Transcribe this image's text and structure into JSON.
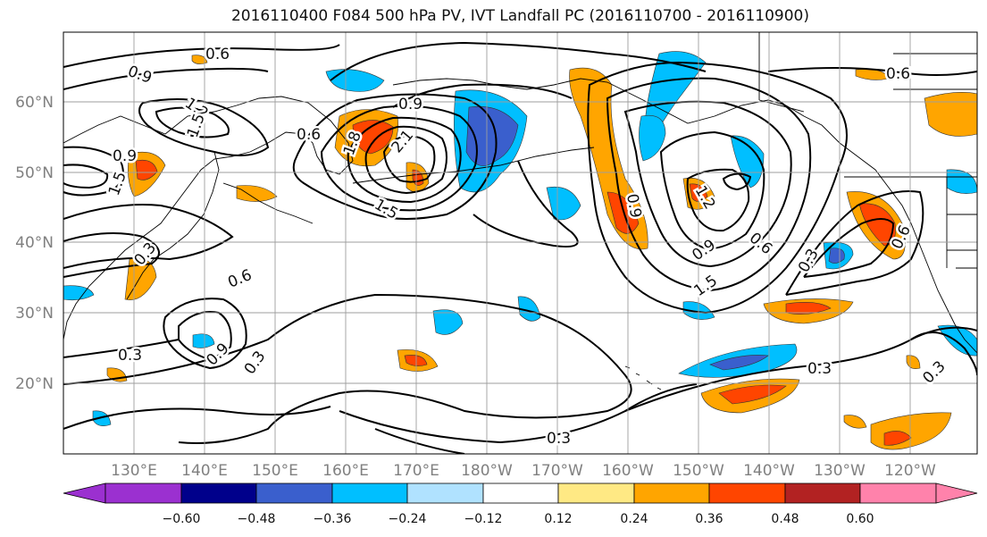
{
  "title": "2016110400 F084 500 hPa PV, IVT Landfall PC (2016110700 - 2016110900)",
  "map": {
    "lon_ticks": [
      "130°E",
      "140°E",
      "150°E",
      "160°E",
      "170°E",
      "180°W",
      "170°W",
      "160°W",
      "150°W",
      "140°W",
      "130°W",
      "120°W"
    ],
    "lat_ticks": [
      "60°N",
      "50°N",
      "40°N",
      "30°N",
      "20°N"
    ],
    "contour_labels": [
      {
        "text": "0.6"
      },
      {
        "text": "0.9"
      },
      {
        "text": "1.2"
      },
      {
        "text": "1.5"
      },
      {
        "text": "0.6"
      },
      {
        "text": "0.9"
      },
      {
        "text": "2.1"
      },
      {
        "text": "1.8"
      },
      {
        "text": "1.5"
      },
      {
        "text": "0.9"
      },
      {
        "text": "0.6"
      },
      {
        "text": "1.5"
      },
      {
        "text": "0.9"
      },
      {
        "text": "1.5"
      },
      {
        "text": "0.9"
      },
      {
        "text": "1.2"
      },
      {
        "text": "0.3"
      },
      {
        "text": "0.3"
      },
      {
        "text": "0.9"
      },
      {
        "text": "0.3"
      },
      {
        "text": "0.6"
      },
      {
        "text": "0.3"
      },
      {
        "text": "0.3"
      },
      {
        "text": "0.3"
      },
      {
        "text": "0.3"
      },
      {
        "text": "0.6"
      },
      {
        "text": "0.6"
      }
    ]
  },
  "colorbar": {
    "colors": [
      "#9b30d0",
      "#00008b",
      "#3a5fcd",
      "#00bfff",
      "#b0e2ff",
      "#ffffff",
      "#ffe984",
      "#ffa500",
      "#ff4500",
      "#b22222",
      "#ff82ab"
    ],
    "labels": [
      "−0.60",
      "−0.48",
      "−0.36",
      "−0.24",
      "−0.12",
      "0.12",
      "0.24",
      "0.36",
      "0.48",
      "0.60"
    ]
  }
}
